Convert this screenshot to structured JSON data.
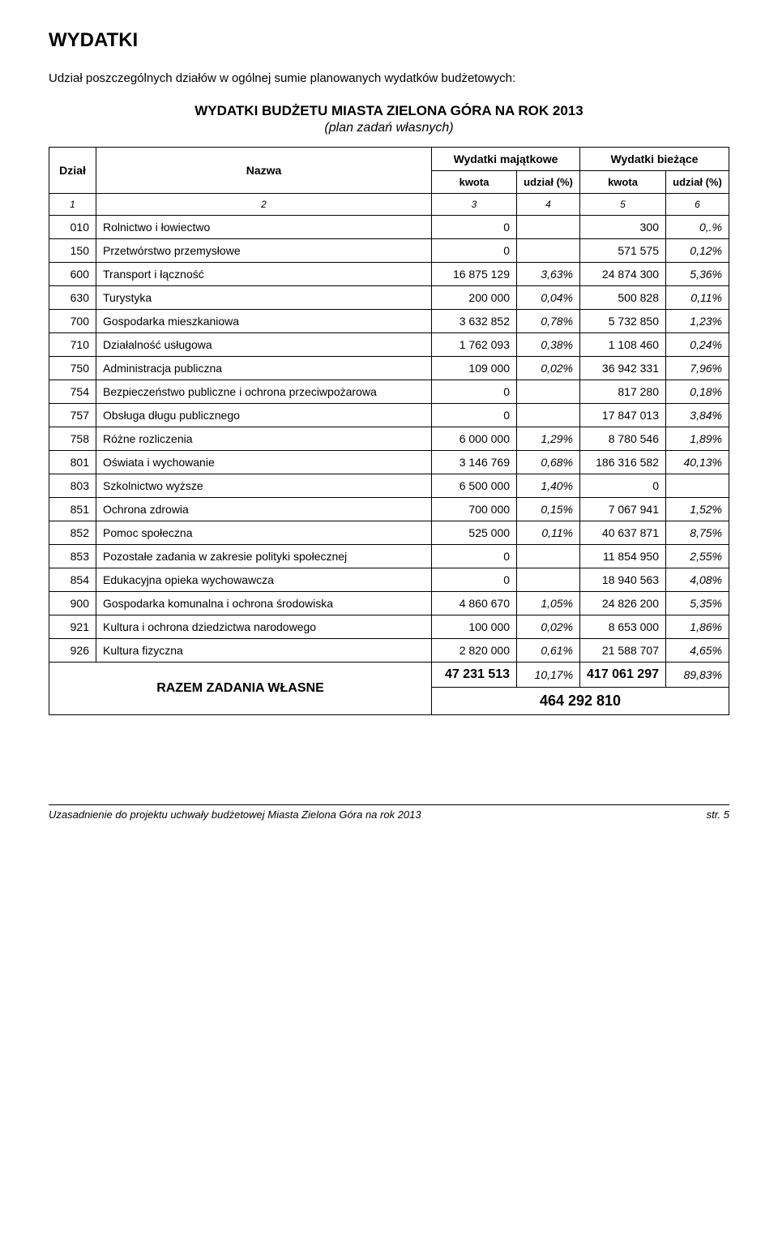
{
  "heading": "WYDATKI",
  "subtitle": "Udział poszczególnych działów w ogólnej sumie planowanych wydatków budżetowych:",
  "tableTitle": "WYDATKI BUDŻETU MIASTA ZIELONA GÓRA NA ROK 2013",
  "tableSubtitle": "(plan zadań własnych)",
  "headers": {
    "dzial": "Dział",
    "nazwa": "Nazwa",
    "majatkowe": "Wydatki majątkowe",
    "biezace": "Wydatki bieżące",
    "kwota": "kwota",
    "udzial": "udział (%)",
    "colnums": [
      "1",
      "2",
      "3",
      "4",
      "5",
      "6"
    ]
  },
  "rows": [
    {
      "dzial": "010",
      "nazwa": "Rolnictwo i łowiectwo",
      "k1": "0",
      "u1": "",
      "k2": "300",
      "u2": "0,.%"
    },
    {
      "dzial": "150",
      "nazwa": "Przetwórstwo przemysłowe",
      "k1": "0",
      "u1": "",
      "k2": "571 575",
      "u2": "0,12%"
    },
    {
      "dzial": "600",
      "nazwa": "Transport i łączność",
      "k1": "16 875 129",
      "u1": "3,63%",
      "k2": "24 874 300",
      "u2": "5,36%"
    },
    {
      "dzial": "630",
      "nazwa": "Turystyka",
      "k1": "200 000",
      "u1": "0,04%",
      "k2": "500 828",
      "u2": "0,11%"
    },
    {
      "dzial": "700",
      "nazwa": "Gospodarka mieszkaniowa",
      "k1": "3 632 852",
      "u1": "0,78%",
      "k2": "5 732 850",
      "u2": "1,23%"
    },
    {
      "dzial": "710",
      "nazwa": "Działalność usługowa",
      "k1": "1 762 093",
      "u1": "0,38%",
      "k2": "1 108 460",
      "u2": "0,24%"
    },
    {
      "dzial": "750",
      "nazwa": "Administracja publiczna",
      "k1": "109 000",
      "u1": "0,02%",
      "k2": "36 942 331",
      "u2": "7,96%"
    },
    {
      "dzial": "754",
      "nazwa": "Bezpieczeństwo publiczne i ochrona przeciwpożarowa",
      "k1": "0",
      "u1": "",
      "k2": "817 280",
      "u2": "0,18%"
    },
    {
      "dzial": "757",
      "nazwa": "Obsługa długu publicznego",
      "k1": "0",
      "u1": "",
      "k2": "17 847 013",
      "u2": "3,84%"
    },
    {
      "dzial": "758",
      "nazwa": "Różne rozliczenia",
      "k1": "6 000 000",
      "u1": "1,29%",
      "k2": "8 780 546",
      "u2": "1,89%"
    },
    {
      "dzial": "801",
      "nazwa": "Oświata i wychowanie",
      "k1": "3 146 769",
      "u1": "0,68%",
      "k2": "186 316 582",
      "u2": "40,13%"
    },
    {
      "dzial": "803",
      "nazwa": "Szkolnictwo wyższe",
      "k1": "6 500 000",
      "u1": "1,40%",
      "k2": "0",
      "u2": ""
    },
    {
      "dzial": "851",
      "nazwa": "Ochrona zdrowia",
      "k1": "700 000",
      "u1": "0,15%",
      "k2": "7 067 941",
      "u2": "1,52%"
    },
    {
      "dzial": "852",
      "nazwa": "Pomoc społeczna",
      "k1": "525 000",
      "u1": "0,11%",
      "k2": "40 637 871",
      "u2": "8,75%"
    },
    {
      "dzial": "853",
      "nazwa": "Pozostałe zadania w zakresie polityki społecznej",
      "k1": "0",
      "u1": "",
      "k2": "11 854 950",
      "u2": "2,55%"
    },
    {
      "dzial": "854",
      "nazwa": "Edukacyjna opieka wychowawcza",
      "k1": "0",
      "u1": "",
      "k2": "18 940 563",
      "u2": "4,08%"
    },
    {
      "dzial": "900",
      "nazwa": "Gospodarka komunalna i ochrona środowiska",
      "k1": "4 860 670",
      "u1": "1,05%",
      "k2": "24 826 200",
      "u2": "5,35%"
    },
    {
      "dzial": "921",
      "nazwa": "Kultura i ochrona dziedzictwa narodowego",
      "k1": "100 000",
      "u1": "0,02%",
      "k2": "8 653 000",
      "u2": "1,86%"
    },
    {
      "dzial": "926",
      "nazwa": "Kultura fizyczna",
      "k1": "2 820 000",
      "u1": "0,61%",
      "k2": "21 588 707",
      "u2": "4,65%"
    }
  ],
  "totals": {
    "label": "RAZEM ZADANIA WŁASNE",
    "k1": "47 231 513",
    "u1": "10,17%",
    "k2": "417 061 297",
    "u2": "89,83%",
    "grand": "464 292 810"
  },
  "footer": {
    "left": "Uzasadnienie do projektu uchwały budżetowej Miasta Zielona Góra na rok 2013",
    "right": "str. 5"
  }
}
